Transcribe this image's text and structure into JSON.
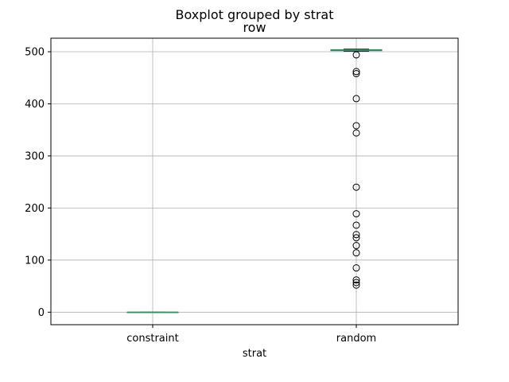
{
  "chart_data": {
    "type": "box",
    "title": "Boxplot grouped by strat",
    "subtitle": "row",
    "xlabel": "strat",
    "ylabel": "",
    "ylim": [
      -24,
      526
    ],
    "yticks": [
      0,
      100,
      200,
      300,
      400,
      500
    ],
    "grid": true,
    "categories": [
      "constraint",
      "random"
    ],
    "boxes": [
      {
        "category": "constraint",
        "q1": 0,
        "median": 0,
        "q3": 0,
        "whisker_low": 0,
        "whisker_high": 0,
        "outliers": []
      },
      {
        "category": "random",
        "q1": 502,
        "median": 503,
        "q3": 504,
        "whisker_low": 501,
        "whisker_high": 505,
        "outliers": [
          494,
          462,
          458,
          410,
          358,
          344,
          240,
          189,
          167,
          149,
          143,
          128,
          114,
          85,
          62,
          57,
          52
        ]
      }
    ],
    "colors": {
      "box": "#1f77b4",
      "median": "#2ca02c",
      "grid": "#b0b0b0",
      "outlier": "#000000"
    }
  }
}
